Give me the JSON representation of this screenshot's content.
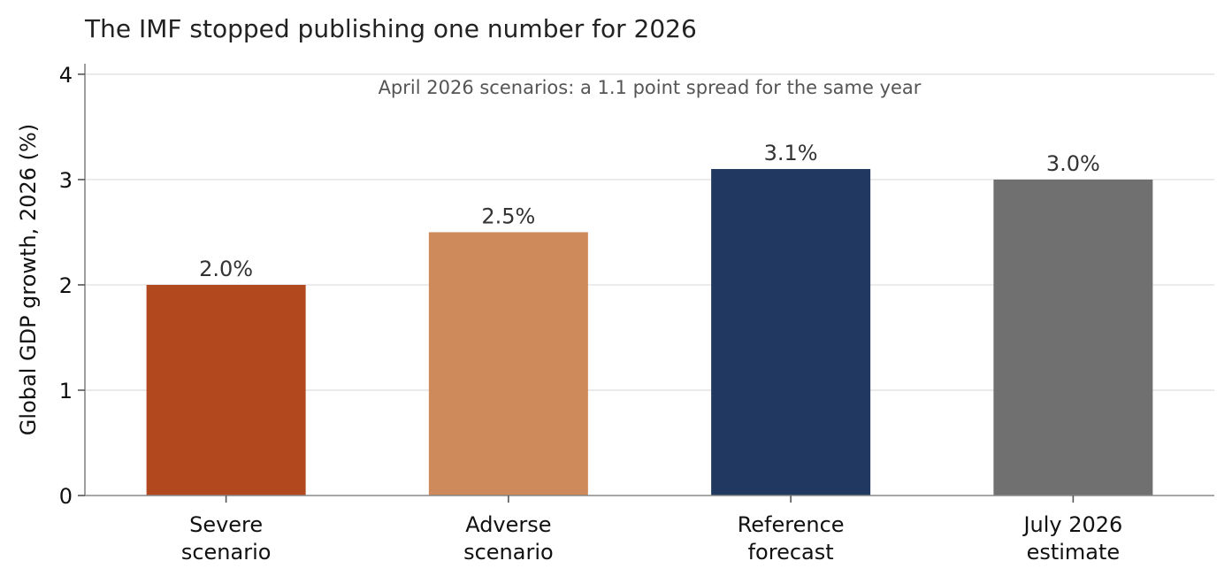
{
  "chart_data": {
    "type": "bar",
    "title": "The IMF stopped publishing one number for 2026",
    "subtitle": "April 2026 scenarios: a 1.1 point spread for the same year",
    "ylabel": "Global GDP growth, 2026 (%)",
    "xlabel": "",
    "categories": [
      [
        "Severe",
        "scenario"
      ],
      [
        "Adverse",
        "scenario"
      ],
      [
        "Reference",
        "forecast"
      ],
      [
        "July 2026",
        "estimate"
      ]
    ],
    "values": [
      2.0,
      2.5,
      3.1,
      3.0
    ],
    "data_labels": [
      "2.0%",
      "2.5%",
      "3.1%",
      "3.0%"
    ],
    "colors": [
      "#b2491e",
      "#cf8a5c",
      "#213861",
      "#707070"
    ],
    "ylim": [
      0,
      4.1
    ],
    "yticks": [
      0,
      1,
      2,
      3,
      4
    ],
    "grid": "horizontal"
  }
}
